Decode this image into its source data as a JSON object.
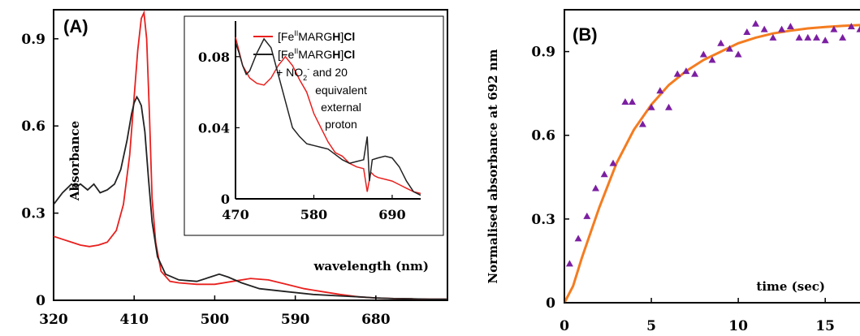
{
  "chart_data": [
    {
      "panel": "(A)",
      "type": "line",
      "xlabel": "wavelength (nm)",
      "ylabel": "Absorbance",
      "xlim": [
        320,
        760
      ],
      "ylim": [
        0,
        1.0
      ],
      "xticks": [
        "320",
        "410",
        "500",
        "590",
        "680"
      ],
      "yticks": [
        "0",
        "0.3",
        "0.6",
        "0.9"
      ],
      "series": [
        {
          "name": "[Fe^IIMARGH]Cl",
          "color": "#e8201e",
          "x": [
            320,
            330,
            340,
            350,
            360,
            370,
            380,
            390,
            398,
            405,
            410,
            414,
            418,
            421,
            424,
            427,
            430,
            434,
            440,
            450,
            460,
            480,
            500,
            520,
            540,
            560,
            580,
            600,
            620,
            640,
            660,
            680,
            700,
            720,
            740,
            760
          ],
          "y": [
            0.22,
            0.21,
            0.2,
            0.19,
            0.185,
            0.19,
            0.2,
            0.24,
            0.33,
            0.5,
            0.7,
            0.86,
            0.97,
            0.99,
            0.9,
            0.65,
            0.35,
            0.2,
            0.1,
            0.065,
            0.06,
            0.055,
            0.055,
            0.065,
            0.075,
            0.07,
            0.055,
            0.04,
            0.03,
            0.02,
            0.012,
            0.008,
            0.006,
            0.005,
            0.004,
            0.004
          ]
        },
        {
          "name": "[Fe^IIMARGH]Cl + NO2- and 20 equivalent external proton",
          "color": "#222222",
          "x": [
            320,
            330,
            340,
            345,
            350,
            358,
            365,
            372,
            380,
            388,
            395,
            402,
            407,
            410,
            413,
            415,
            418,
            422,
            426,
            430,
            436,
            445,
            460,
            480,
            495,
            505,
            515,
            530,
            550,
            580,
            610,
            640,
            660,
            680,
            700,
            720,
            740,
            760
          ],
          "y": [
            0.33,
            0.37,
            0.4,
            0.39,
            0.4,
            0.38,
            0.4,
            0.37,
            0.38,
            0.4,
            0.45,
            0.55,
            0.64,
            0.68,
            0.7,
            0.69,
            0.67,
            0.58,
            0.42,
            0.27,
            0.15,
            0.09,
            0.07,
            0.065,
            0.08,
            0.09,
            0.08,
            0.06,
            0.04,
            0.03,
            0.02,
            0.015,
            0.012,
            0.008,
            0.006,
            0.005,
            0.004,
            0.004
          ]
        }
      ],
      "inset": {
        "xlim": [
          470,
          730
        ],
        "ylim": [
          0,
          0.1
        ],
        "xticks": [
          "470",
          "580",
          "690"
        ],
        "yticks": [
          "0",
          "0.04",
          "0.08"
        ],
        "series": [
          {
            "name": "[Fe^IIMARGH]Cl",
            "x": [
              470,
              480,
              490,
              500,
              510,
              520,
              530,
              540,
              550,
              560,
              570,
              580,
              590,
              600,
              610,
              620,
              630,
              640,
              650,
              655,
              660,
              665,
              670,
              680,
              690,
              700,
              710,
              720,
              730
            ],
            "y": [
              0.091,
              0.075,
              0.068,
              0.065,
              0.064,
              0.068,
              0.075,
              0.08,
              0.075,
              0.067,
              0.06,
              0.048,
              0.04,
              0.032,
              0.026,
              0.024,
              0.02,
              0.018,
              0.017,
              0.004,
              0.015,
              0.013,
              0.012,
              0.011,
              0.01,
              0.008,
              0.006,
              0.004,
              0.003
            ]
          },
          {
            "name": "[Fe^IIMARGH]Cl + NO2- and 20 equivalent external proton",
            "x": [
              470,
              475,
              480,
              485,
              490,
              500,
              510,
              520,
              530,
              540,
              550,
              560,
              570,
              580,
              590,
              600,
              610,
              620,
              630,
              640,
              650,
              655,
              658,
              662,
              670,
              680,
              690,
              700,
              710,
              720,
              730
            ],
            "y": [
              0.088,
              0.082,
              0.075,
              0.07,
              0.072,
              0.082,
              0.09,
              0.085,
              0.07,
              0.055,
              0.04,
              0.035,
              0.031,
              0.03,
              0.029,
              0.028,
              0.025,
              0.022,
              0.02,
              0.021,
              0.022,
              0.035,
              0.01,
              0.022,
              0.023,
              0.024,
              0.023,
              0.018,
              0.01,
              0.004,
              0.002
            ]
          }
        ]
      }
    },
    {
      "panel": "(B)",
      "type": "scatter",
      "xlabel": "time (sec)",
      "ylabel": "Normalised absorbance at 692 nm",
      "xlim": [
        0,
        17
      ],
      "ylim": [
        0,
        1.05
      ],
      "xticks": [
        "0",
        "5",
        "10",
        "15"
      ],
      "yticks": [
        "0",
        "0.3",
        "0.6",
        "0.9"
      ],
      "points": {
        "color": "#7b1fa2",
        "x": [
          0.3,
          0.8,
          1.3,
          1.8,
          2.3,
          2.8,
          3.5,
          3.9,
          4.5,
          5.0,
          5.5,
          6.0,
          6.5,
          7.0,
          7.5,
          8.0,
          8.5,
          9.0,
          9.5,
          10.0,
          10.5,
          11.0,
          11.5,
          12.0,
          12.5,
          13.0,
          13.5,
          14.0,
          14.5,
          15.0,
          15.5,
          16.0,
          16.5,
          17.0
        ],
        "y": [
          0.14,
          0.23,
          0.31,
          0.41,
          0.46,
          0.5,
          0.72,
          0.72,
          0.64,
          0.7,
          0.76,
          0.7,
          0.82,
          0.83,
          0.82,
          0.89,
          0.87,
          0.93,
          0.91,
          0.89,
          0.97,
          1.0,
          0.98,
          0.95,
          0.98,
          0.99,
          0.95,
          0.95,
          0.95,
          0.94,
          0.98,
          0.95,
          0.99,
          0.98
        ]
      },
      "fit": {
        "color": "#f47c20",
        "x": [
          0,
          0.5,
          1,
          1.5,
          2,
          2.5,
          3,
          4,
          5,
          6,
          7,
          8,
          9,
          10,
          11,
          12,
          13,
          14,
          15,
          16,
          17
        ],
        "y": [
          0,
          0.06,
          0.16,
          0.25,
          0.34,
          0.42,
          0.5,
          0.62,
          0.71,
          0.78,
          0.83,
          0.87,
          0.9,
          0.93,
          0.95,
          0.965,
          0.975,
          0.983,
          0.988,
          0.992,
          0.995
        ]
      }
    }
  ]
}
